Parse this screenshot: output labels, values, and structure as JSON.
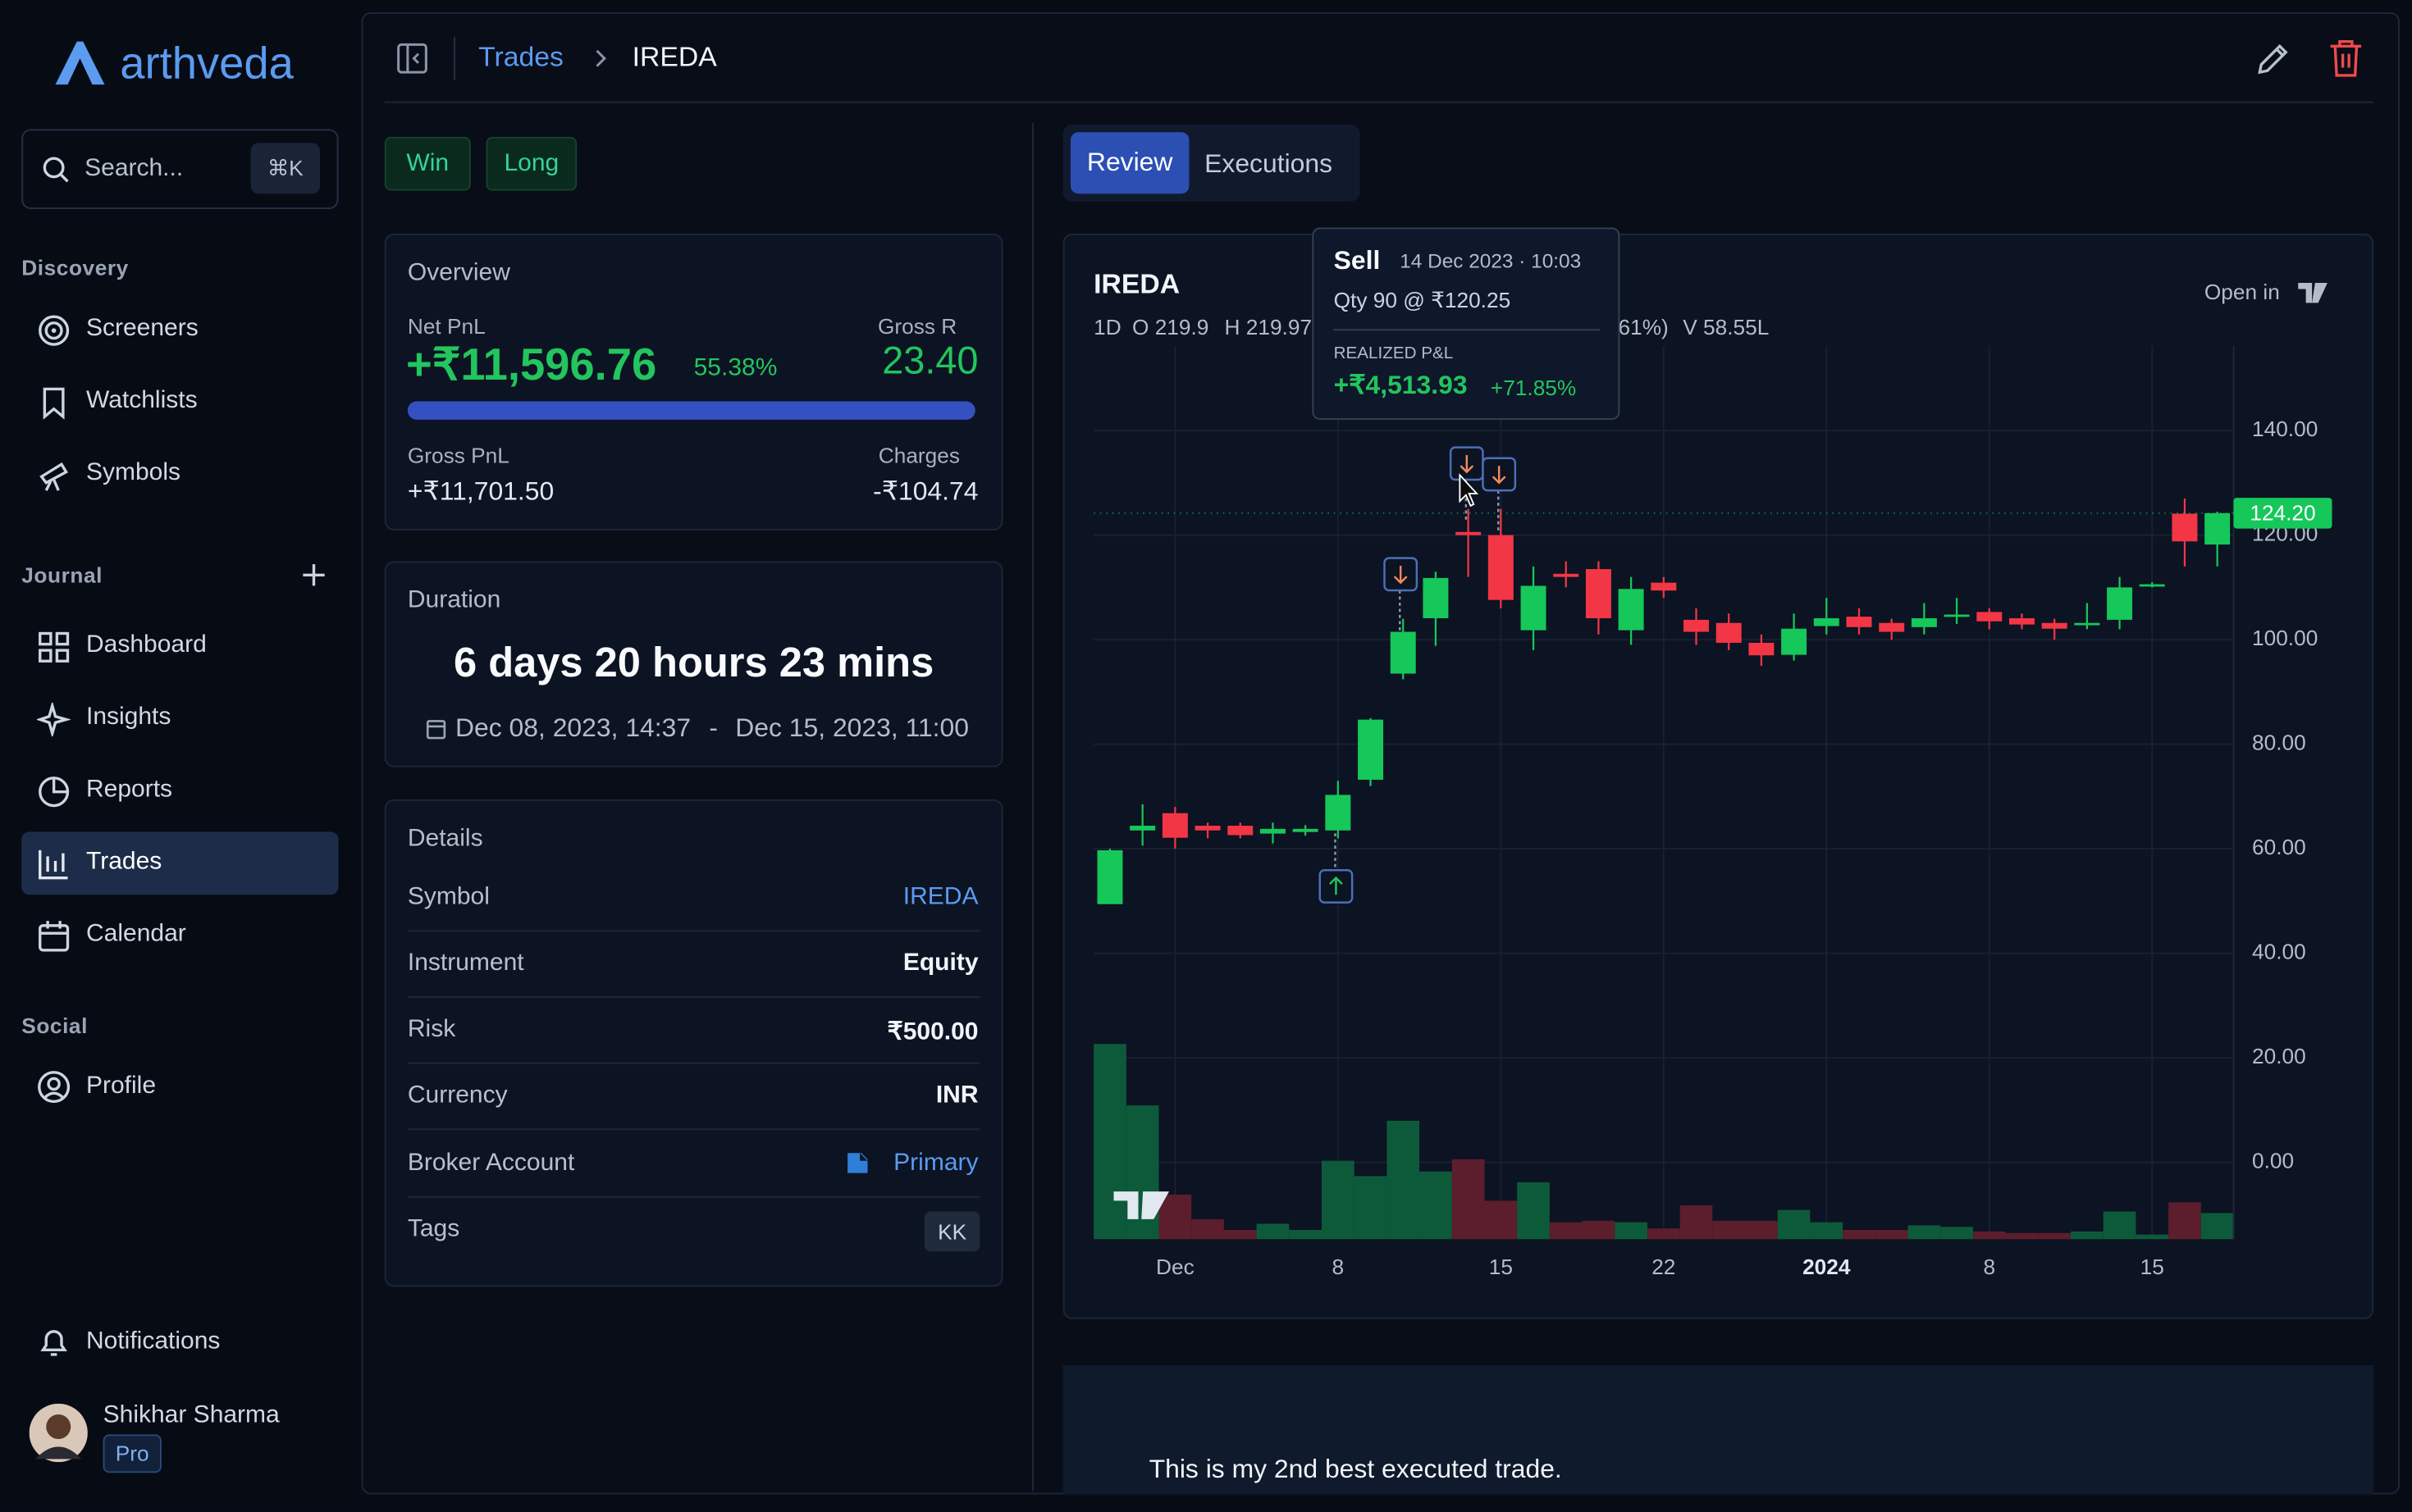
{
  "sidebar": {
    "brand": "arthveda",
    "search": "Search...",
    "shortcut": "⌘K",
    "sections": [
      {
        "title": "Discovery",
        "items": [
          "Screeners",
          "Watchlists",
          "Symbols"
        ]
      },
      {
        "title": "Journal",
        "items": [
          "Dashboard",
          "Insights",
          "Reports",
          "Trades",
          "Calendar"
        ]
      },
      {
        "title": "Social",
        "items": [
          "Profile"
        ]
      }
    ],
    "notifications": "Notifications",
    "user": {
      "name": "Shikhar Sharma",
      "plan": "Pro"
    }
  },
  "breadcrumb": [
    "Trades",
    "IREDA"
  ],
  "badges": [
    "Win",
    "Long"
  ],
  "overview": {
    "title": "Overview",
    "net_pnl_label": "Net PnL",
    "net_pnl": "+₹11,596.76",
    "net_pnl_pct": "55.38%",
    "gross_r_label": "Gross R",
    "gross_r": "23.40",
    "gross_pnl_label": "Gross PnL",
    "gross_pnl": "+₹11,701.50",
    "charges_label": "Charges",
    "charges": "-₹104.74"
  },
  "duration": {
    "title": "Duration",
    "value": "6 days 20 hours 23 mins",
    "start": "Dec 08, 2023, 14:37",
    "separator": "-",
    "end": "Dec 15, 2023, 11:00"
  },
  "details": {
    "title": "Details",
    "rows": [
      [
        "Symbol",
        "IREDA"
      ],
      [
        "Instrument",
        "Equity"
      ],
      [
        "Risk",
        "₹500.00"
      ],
      [
        "Currency",
        "INR"
      ],
      [
        "Broker Account",
        "Primary"
      ],
      [
        "Tags",
        "KK"
      ]
    ]
  },
  "tabs": [
    "Review",
    "Executions"
  ],
  "open_in": "Open in",
  "tooltip": {
    "side": "Sell",
    "time": "14 Dec 2023 · 10:03",
    "qty": "Qty 90 @ ₹120.25",
    "label": "REALIZED P&L",
    "pnl": "+₹4,513.93",
    "pct": "+71.85%"
  },
  "chart_data": {
    "type": "candlestick",
    "title": "IREDA",
    "legend": [
      "1D",
      "O 219.9",
      "H 219.97",
      "61%)",
      "V 58.55L"
    ],
    "categories": [
      null,
      null,
      "Dec",
      null,
      null,
      null,
      null,
      "8",
      null,
      null,
      null,
      null,
      "15",
      null,
      null,
      null,
      null,
      "22",
      null,
      null,
      null,
      null,
      "2024",
      null,
      null,
      null,
      null,
      "8",
      null,
      null,
      null,
      null,
      "15",
      null,
      null
    ],
    "open": [
      49.4,
      63.5,
      66.8,
      64.4,
      64.4,
      62.9,
      63.2,
      63.5,
      73.2,
      93.5,
      104.1,
      120.6,
      120.0,
      101.8,
      112.6,
      113.5,
      101.8,
      110.9,
      103.8,
      103.2,
      99.4,
      97.1,
      102.6,
      104.4,
      103.2,
      102.4,
      104.4,
      105.3,
      104.1,
      103.2,
      102.9,
      103.8,
      110.3,
      124.1,
      118.2
    ],
    "high": [
      60.0,
      68.5,
      68.0,
      65.0,
      65.0,
      65.0,
      64.5,
      73.0,
      85.0,
      104.0,
      113.0,
      125.0,
      125.0,
      114.0,
      115.0,
      115.0,
      112.0,
      112.0,
      106.0,
      105.0,
      101.0,
      105.0,
      108.0,
      106.0,
      104.0,
      107.0,
      108.0,
      106.0,
      105.0,
      104.0,
      107.0,
      112.0,
      111.0,
      127.0,
      124.5
    ],
    "low": [
      49.4,
      60.6,
      60.0,
      62.0,
      62.0,
      61.0,
      62.5,
      62.0,
      72.0,
      92.4,
      98.8,
      112.0,
      106.0,
      98.0,
      110.0,
      101.0,
      99.0,
      108.0,
      99.0,
      98.0,
      95.0,
      96.0,
      101.0,
      101.0,
      100.0,
      101.0,
      103.0,
      102.0,
      102.0,
      100.0,
      102.0,
      102.0,
      110.0,
      114.0,
      114.0
    ],
    "close": [
      59.7,
      64.4,
      62.1,
      63.5,
      62.6,
      63.8,
      63.8,
      70.3,
      84.7,
      101.5,
      111.8,
      120.0,
      107.6,
      110.3,
      112.0,
      104.1,
      109.7,
      109.4,
      101.5,
      99.4,
      97.0,
      102.1,
      104.1,
      102.4,
      101.5,
      104.1,
      104.8,
      103.5,
      102.9,
      102.1,
      103.2,
      110.0,
      110.6,
      118.8,
      124.2
    ],
    "volume": [
      127,
      87,
      29,
      13,
      6,
      10,
      6,
      51,
      41,
      77,
      44,
      52,
      25,
      37,
      11,
      12,
      11,
      7,
      22,
      12,
      12,
      19,
      11,
      6,
      6,
      9,
      8,
      5,
      4,
      4,
      5,
      18,
      3,
      24,
      17
    ],
    "vlim": [
      0,
      581
    ],
    "up_color": "#16c75a",
    "down_color": "#f23645",
    "volume_up_color": "#0d5a3a",
    "volume_down_color": "#5c1d2c",
    "ylim": [
      -14.7,
      156.2
    ],
    "yticks": [
      {
        "value": 0,
        "label": "0.00"
      },
      {
        "value": 20,
        "label": "20.00"
      },
      {
        "value": 40,
        "label": "40.00"
      },
      {
        "value": 60,
        "label": "60.00"
      },
      {
        "value": 80,
        "label": "80.00"
      },
      {
        "value": 100,
        "label": "100.00"
      },
      {
        "value": 120,
        "label": "120.00"
      },
      {
        "value": 140,
        "label": "140.00"
      }
    ],
    "bold_categories": [
      "2024"
    ],
    "last_price": {
      "value": 124.2,
      "label": "124.20"
    },
    "grid": true
  },
  "note": "This is my 2nd best executed trade."
}
